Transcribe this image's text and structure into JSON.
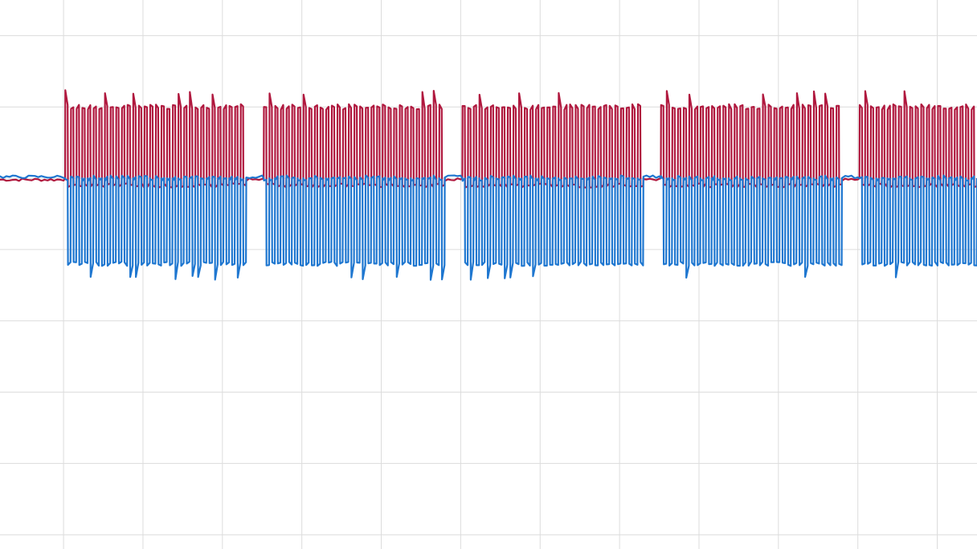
{
  "chart_data": {
    "type": "line",
    "title": "",
    "xlabel": "",
    "ylabel": "",
    "grid": true,
    "legend": "none",
    "xlim": [
      0,
      12.3
    ],
    "ylim": [
      -4.2,
      3.5
    ],
    "xticks": [
      0.8,
      1.8,
      2.8,
      3.8,
      4.8,
      5.8,
      6.8,
      7.8,
      8.8,
      9.8,
      10.8,
      11.8
    ],
    "yticks": [
      3.0,
      2.0,
      1.0,
      0.0,
      -1.0,
      -2.0,
      -3.0,
      -4.0
    ],
    "baseline": 1.0,
    "bursts": [
      {
        "start": 0.82,
        "end": 3.1,
        "cycles": 32
      },
      {
        "start": 3.32,
        "end": 5.6,
        "cycles": 32
      },
      {
        "start": 5.82,
        "end": 8.1,
        "cycles": 32
      },
      {
        "start": 8.32,
        "end": 10.6,
        "cycles": 32
      },
      {
        "start": 10.82,
        "end": 12.3,
        "cycles": 21
      }
    ],
    "series": [
      {
        "color": "#b0183e",
        "high": 2.0,
        "mid": 1.0,
        "low": 0.9
      },
      {
        "color": "#1f77d0",
        "high": 1.0,
        "mid": 1.0,
        "low": -0.2
      }
    ],
    "colors": {
      "grid": "#dcdcdc",
      "background": "#ffffff"
    }
  }
}
